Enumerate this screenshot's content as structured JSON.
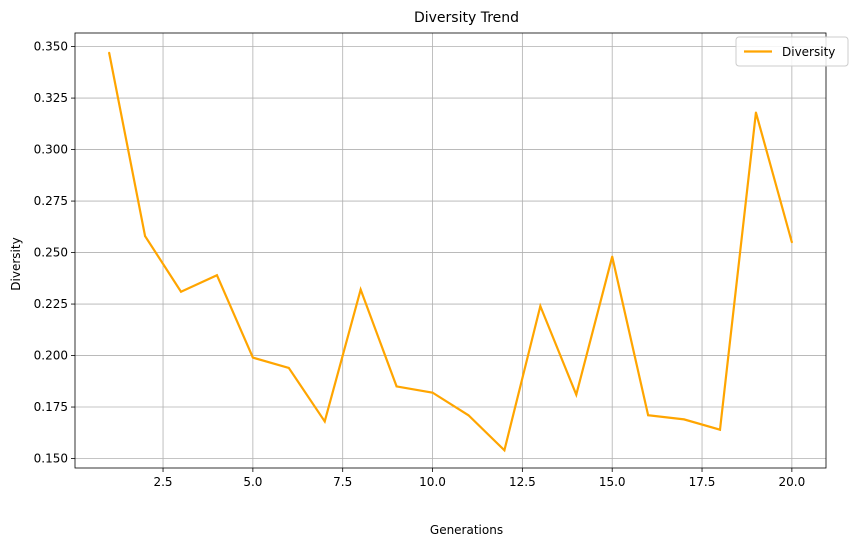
{
  "chart_data": {
    "type": "line",
    "title": "Diversity Trend",
    "xlabel": "Generations",
    "ylabel": "Diversity",
    "xlim": [
      0.05,
      20.95
    ],
    "ylim": [
      0.1454,
      0.3566
    ],
    "x_ticks": [
      2.5,
      5.0,
      7.5,
      10.0,
      12.5,
      15.0,
      17.5,
      20.0
    ],
    "x_tick_labels": [
      "2.5",
      "5.0",
      "7.5",
      "10.0",
      "12.5",
      "15.0",
      "17.5",
      "20.0"
    ],
    "y_ticks": [
      0.15,
      0.175,
      0.2,
      0.225,
      0.25,
      0.275,
      0.3,
      0.325,
      0.35
    ],
    "y_tick_labels": [
      "0.150",
      "0.175",
      "0.200",
      "0.225",
      "0.250",
      "0.275",
      "0.300",
      "0.325",
      "0.350"
    ],
    "grid": true,
    "legend_position": "top-right",
    "series": [
      {
        "name": "Diversity",
        "color": "#ffa500",
        "x": [
          1,
          2,
          3,
          4,
          5,
          6,
          7,
          8,
          9,
          10,
          11,
          12,
          13,
          14,
          15,
          16,
          17,
          18,
          19,
          20
        ],
        "y": [
          0.347,
          0.258,
          0.231,
          0.239,
          0.199,
          0.194,
          0.168,
          0.232,
          0.185,
          0.182,
          0.171,
          0.154,
          0.224,
          0.181,
          0.248,
          0.171,
          0.169,
          0.164,
          0.318,
          0.255
        ]
      }
    ]
  }
}
